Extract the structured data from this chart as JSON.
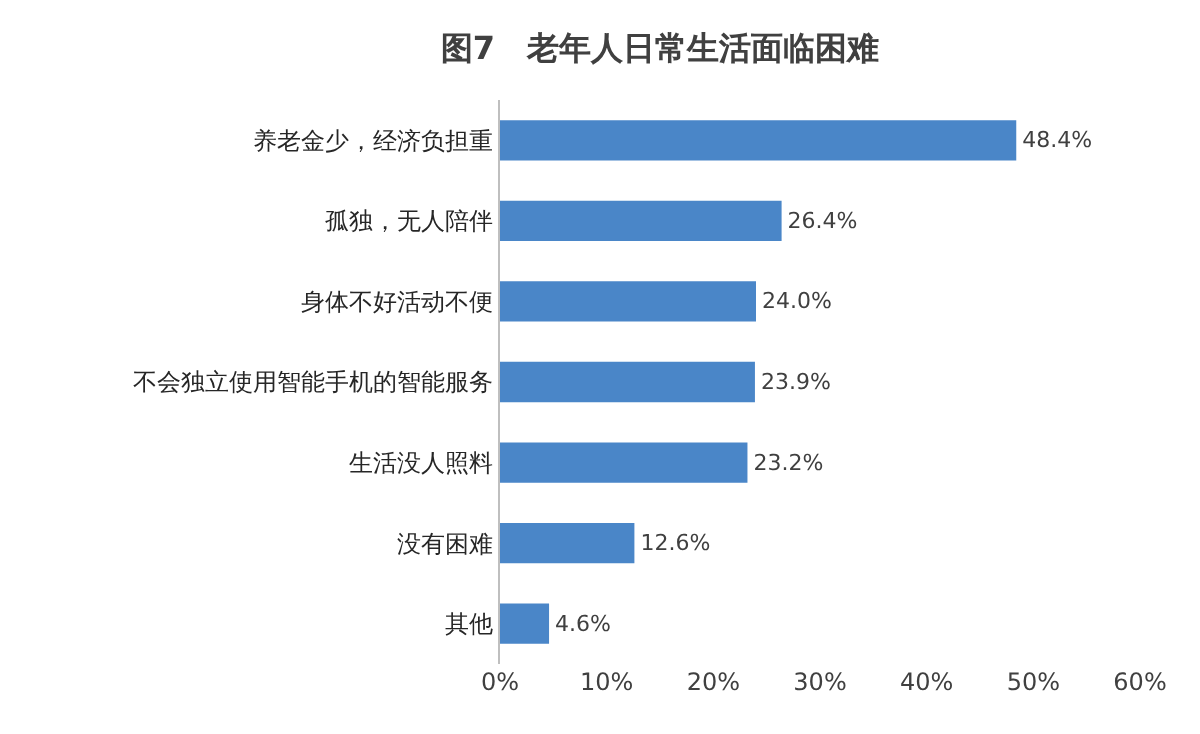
{
  "chart_data": {
    "type": "bar",
    "orientation": "horizontal",
    "title": "图7　老年人日常生活面临困难",
    "categories": [
      "养老金少，经济负担重",
      "孤独，无人陪伴",
      "身体不好活动不便",
      "不会独立使用智能手机的智能服务",
      "生活没人照料",
      "没有困难",
      "其他"
    ],
    "values": [
      48.4,
      26.4,
      24.0,
      23.9,
      23.2,
      12.6,
      4.6
    ],
    "value_labels": [
      "48.4%",
      "26.4%",
      "24.0%",
      "23.9%",
      "23.2%",
      "12.6%",
      "4.6%"
    ],
    "color": "#4a86c8",
    "xlim": [
      0,
      60
    ],
    "xticks": [
      {
        "value": 0,
        "label": "0%"
      },
      {
        "value": 10,
        "label": "10%"
      },
      {
        "value": 20,
        "label": "20%"
      },
      {
        "value": 30,
        "label": "30%"
      },
      {
        "value": 40,
        "label": "40%"
      },
      {
        "value": 50,
        "label": "50%"
      },
      {
        "value": 60,
        "label": "60%"
      }
    ]
  }
}
